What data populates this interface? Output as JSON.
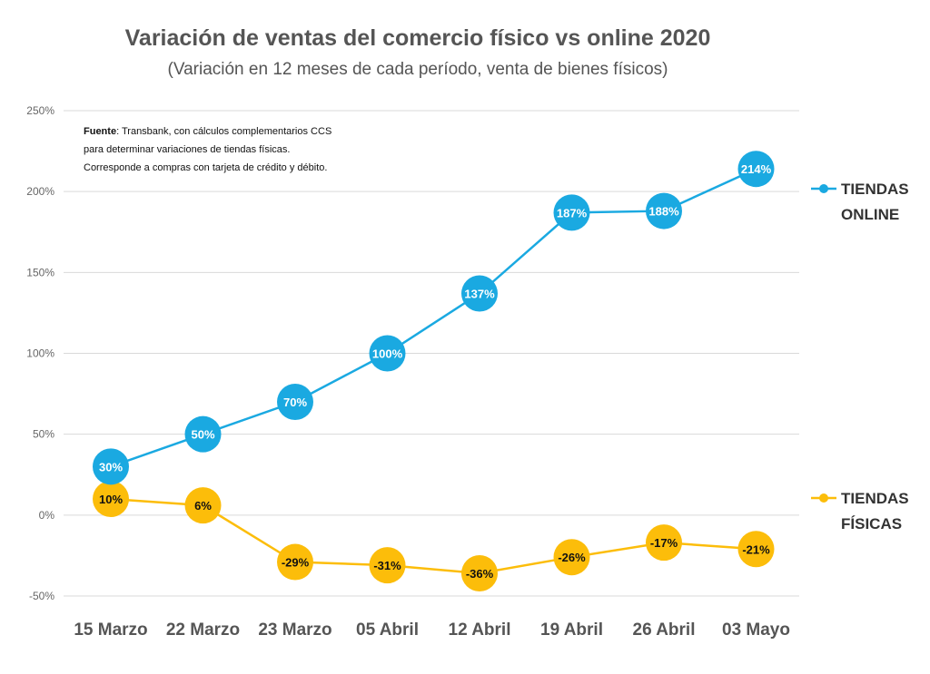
{
  "chart_data": {
    "type": "line",
    "title": "Variación de ventas del comercio físico vs online 2020",
    "subtitle": "(Variación en 12 meses de cada período, venta de bienes físicos)",
    "categories": [
      "15 Marzo",
      "22 Marzo",
      "23 Marzo",
      "05 Abril",
      "12 Abril",
      "19 Abril",
      "26 Abril",
      "03 Mayo"
    ],
    "y_ticks": [
      "250%",
      "200%",
      "150%",
      "100%",
      "50%",
      "0%",
      "-50%"
    ],
    "y_tick_values": [
      250,
      200,
      150,
      100,
      50,
      0,
      -50
    ],
    "ylim": [
      -50,
      250
    ],
    "grid": true,
    "legend_position": "right",
    "series": [
      {
        "name_lines": [
          "TIENDAS",
          "ONLINE"
        ],
        "color": "#1aa9e1",
        "label_color": "#ffffff",
        "values": [
          30,
          50,
          70,
          100,
          137,
          187,
          188,
          214
        ],
        "labels": [
          "30%",
          "50%",
          "70%",
          "100%",
          "137%",
          "187%",
          "188%",
          "214%"
        ]
      },
      {
        "name_lines": [
          "TIENDAS",
          "FÍSICAS"
        ],
        "color": "#fcbd0a",
        "label_color": "#111111",
        "values": [
          10,
          6,
          -29,
          -31,
          -36,
          -26,
          -17,
          -21
        ],
        "labels": [
          "10%",
          "6%",
          "-29%",
          "-31%",
          "-36%",
          "-26%",
          "-17%",
          "-21%"
        ]
      }
    ],
    "source_note": {
      "bold": "Fuente",
      "line1_rest": ": Transbank, con cálculos complementarios CCS",
      "line2": "para determinar variaciones de tiendas físicas.",
      "line3": "Corresponde a compras con tarjeta de crédito y débito."
    }
  }
}
